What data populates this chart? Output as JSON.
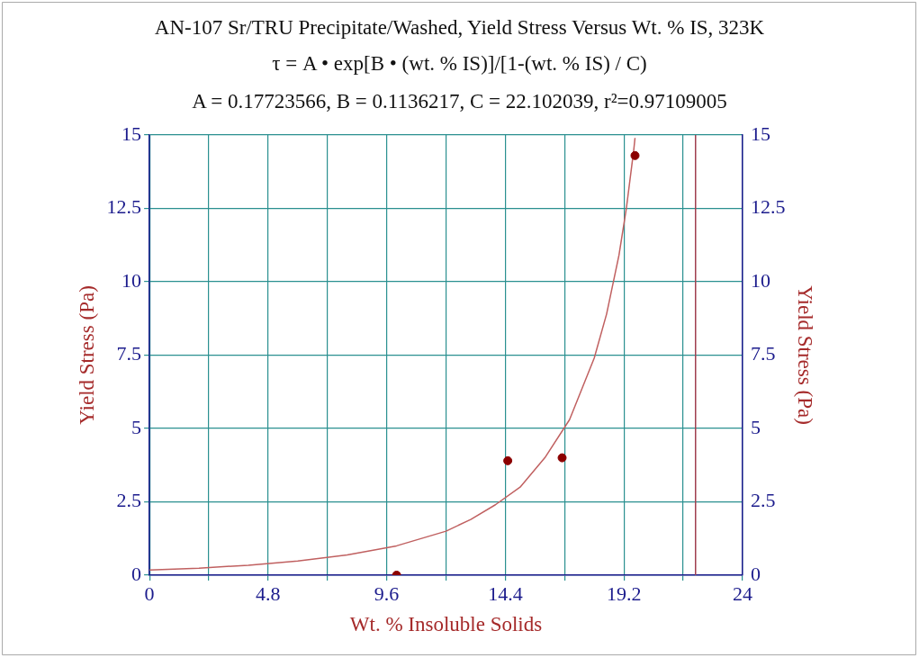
{
  "chart_data": {
    "type": "scatter",
    "title": "AN-107 Sr/TRU Precipitate/Washed, Yield Stress Versus Wt. % IS, 323K",
    "subtitle": "τ = A • exp[B • (wt. % IS)]/[1-(wt. % IS) / C)",
    "annotations": [
      "A = 0.17723566, B = 0.1136217, C = 22.102039, r²=0.97109005"
    ],
    "xlabel": "Wt. % Insoluble Solids",
    "ylabel": "Yield Stress (Pa)",
    "y2label": "Yield Stress (Pa)",
    "series": [
      {
        "marker": "circle",
        "color": "#8b0000",
        "x": [
          10.0,
          14.5,
          16.7,
          19.65
        ],
        "values": [
          0,
          3.9,
          4.0,
          14.3
        ]
      },
      {
        "type": "line",
        "marker": "none",
        "color": "#c06060",
        "x": [
          0,
          2,
          4,
          6,
          8,
          10,
          12,
          13,
          14,
          15,
          16,
          17,
          18,
          18.5,
          19,
          19.3,
          19.6,
          19.65
        ],
        "values": [
          0.18,
          0.24,
          0.34,
          0.48,
          0.69,
          1.0,
          1.5,
          1.9,
          2.4,
          3.0,
          4.0,
          5.3,
          7.4,
          8.9,
          10.9,
          12.5,
          14.5,
          14.9
        ]
      }
    ],
    "xlim": [
      0,
      24
    ],
    "xticks": [
      0,
      {
        "value": 2.4,
        "label": null
      },
      4.8,
      {
        "value": 7.2,
        "label": null
      },
      9.6,
      {
        "value": 12,
        "label": null
      },
      14.4,
      {
        "value": 16.8,
        "label": null
      },
      19.2,
      {
        "value": 21.6,
        "label": null
      },
      24
    ],
    "ylim": [
      0,
      15
    ],
    "yticks": [
      0,
      2.5,
      5,
      7.5,
      10,
      12.5,
      15
    ],
    "y2lim": [
      0,
      15
    ],
    "y2ticks": [
      0,
      2.5,
      5,
      7.5,
      10,
      12.5,
      15
    ],
    "ref_lines": [
      {
        "axis": "x",
        "value": 22.1,
        "color": "#a04050"
      }
    ],
    "grid": true,
    "line_style": "solid",
    "legend": false
  }
}
